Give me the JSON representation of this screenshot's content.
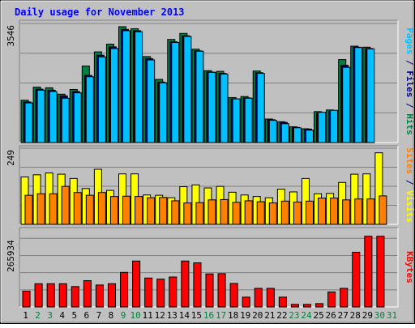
{
  "chart_data": {
    "type": "bar",
    "title": "Daily usage for November 2013",
    "days": [
      "1",
      "2",
      "3",
      "4",
      "5",
      "6",
      "7",
      "8",
      "9",
      "10",
      "11",
      "12",
      "13",
      "14",
      "15",
      "16",
      "17",
      "18",
      "19",
      "20",
      "21",
      "22",
      "23",
      "24",
      "25",
      "26",
      "27",
      "28",
      "29",
      "30",
      "31"
    ],
    "weekend_days": [
      "2",
      "3",
      "9",
      "10",
      "16",
      "17",
      "23",
      "24",
      "30",
      "31"
    ],
    "panels": [
      {
        "id": "pages-files-hits",
        "max_label": "3546",
        "ylim": [
          0,
          3546
        ],
        "axis_label_parts": [
          {
            "text": "Pages",
            "color": "#00c0ff"
          },
          {
            "text": " / ",
            "color": "#000080"
          },
          {
            "text": "Files",
            "color": "#000080"
          },
          {
            "text": " / ",
            "color": "#000080"
          },
          {
            "text": "Hits",
            "color": "#008040"
          }
        ],
        "series": [
          {
            "name": "Hits",
            "color": "#008040",
            "values": [
              1260,
              1650,
              1630,
              1440,
              1580,
              2280,
              2700,
              2930,
              3450,
              3390,
              2560,
              1880,
              3070,
              3250,
              2780,
              2140,
              2120,
              1340,
              1370,
              2130,
              700,
              620,
              470,
              410,
              920,
              970,
              2470,
              2870,
              2840,
              null,
              null
            ]
          },
          {
            "name": "Files",
            "color": "#000080",
            "values": [
              1210,
              1590,
              1560,
              1390,
              1520,
              2000,
              2600,
              2850,
              3370,
              3330,
              2500,
              1800,
              3000,
              3180,
              2730,
              2100,
              2060,
              1300,
              1330,
              2080,
              680,
              600,
              450,
              400,
              880,
              930,
              2300,
              2840,
              2800,
              null,
              null
            ]
          },
          {
            "name": "Pages",
            "color": "#00c0ff",
            "values": [
              1180,
              1560,
              1520,
              1320,
              1480,
              1960,
              2550,
              2800,
              3330,
              3300,
              2460,
              1780,
              2980,
              3160,
              2720,
              2090,
              2040,
              1300,
              1320,
              2060,
              660,
              560,
              440,
              370,
              900,
              960,
              2240,
              2830,
              2790,
              null,
              null
            ]
          }
        ]
      },
      {
        "id": "visits-sites",
        "max_label": "249",
        "ylim": [
          0,
          249
        ],
        "axis_label_parts": [
          {
            "text": "Sites",
            "color": "#ff8000"
          },
          {
            "text": " / ",
            "color": "#000080"
          },
          {
            "text": "Visits",
            "color": "#ffff00"
          }
        ],
        "series": [
          {
            "name": "Visits",
            "color": "#ffff00",
            "values": [
              155,
              162,
              168,
              164,
              150,
              117,
              180,
              111,
              165,
              165,
              96,
              95,
              87,
              123,
              129,
              119,
              124,
              105,
              96,
              91,
              87,
              115,
              106,
              150,
              100,
              101,
              137,
              164,
              165,
              234,
              null
            ]
          },
          {
            "name": "Sites",
            "color": "#ff8000",
            "values": [
              95,
              100,
              100,
              124,
              104,
              95,
              104,
              91,
              92,
              91,
              87,
              88,
              77,
              70,
              71,
              80,
              81,
              72,
              77,
              74,
              70,
              76,
              73,
              76,
              86,
              86,
              80,
              83,
              83,
              93,
              null
            ]
          }
        ]
      },
      {
        "id": "kbytes",
        "max_label": "265934",
        "ylim": [
          0,
          304400
        ],
        "axis_label_parts": [
          {
            "text": "KBytes",
            "color": "#ff0000"
          }
        ],
        "series": [
          {
            "name": "KBytes",
            "color": "#ff0000",
            "values": [
              61000,
              90000,
              90000,
              90000,
              79000,
              102000,
              85000,
              90000,
              134000,
              178000,
              112000,
              108000,
              116000,
              178000,
              171000,
              128000,
              129000,
              91000,
              38000,
              72000,
              72000,
              38000,
              10000,
              10000,
              13000,
              58000,
              72000,
              212000,
              274000,
              274000,
              null
            ]
          }
        ]
      }
    ],
    "colors": {
      "background": "#c0c0c0",
      "plot_background": "#c0c0c0",
      "title": "#0000ff",
      "weekday_label": "#000000",
      "weekend_label": "#008040",
      "grid": "#808080"
    }
  }
}
